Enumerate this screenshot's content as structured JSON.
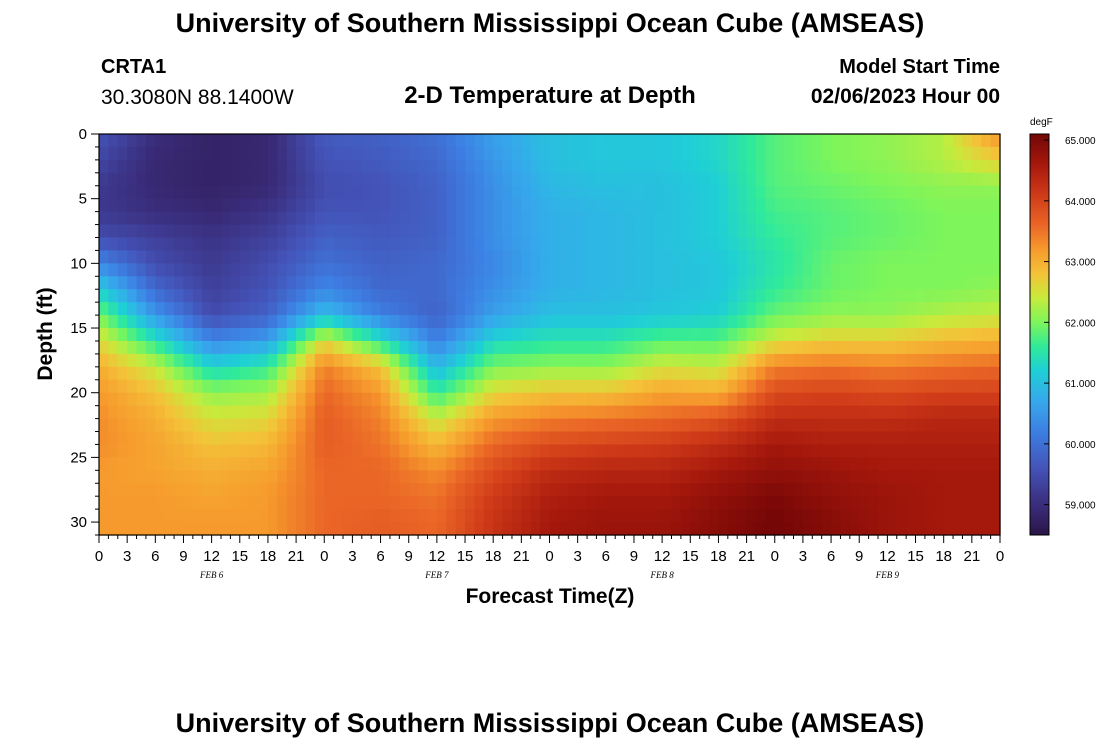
{
  "header": {
    "title": "University of Southern Mississippi Ocean Cube (AMSEAS)",
    "station_id": "CRTA1",
    "station_coords": "30.3080N  88.1400W",
    "subtitle": "2-D Temperature at Depth",
    "model_start_label": "Model Start Time",
    "model_start_time": "02/06/2023 Hour 00"
  },
  "footer": {
    "title": "University of Southern Mississippi Ocean Cube (AMSEAS)"
  },
  "chart_data": {
    "type": "heatmap",
    "title": "2-D Temperature at Depth",
    "xlabel": "Forecast Time(Z)",
    "ylabel": "Depth (ft)",
    "x_hours_range": [
      0,
      96
    ],
    "x_tick_step_hours": 3,
    "x_tick_labels": [
      "0",
      "3",
      "6",
      "9",
      "12",
      "15",
      "18",
      "21",
      "0",
      "3",
      "6",
      "9",
      "12",
      "15",
      "18",
      "21",
      "0",
      "3",
      "6",
      "9",
      "12",
      "15",
      "18",
      "21",
      "0",
      "3",
      "6",
      "9",
      "12",
      "15",
      "18",
      "21",
      "0"
    ],
    "date_labels": [
      {
        "label": "FEB 6",
        "hour": 12
      },
      {
        "label": "FEB 7",
        "hour": 36
      },
      {
        "label": "FEB 8",
        "hour": 60
      },
      {
        "label": "FEB 9",
        "hour": 84
      }
    ],
    "y_range": [
      0,
      31
    ],
    "y_ticks": [
      0,
      5,
      10,
      15,
      20,
      25,
      30
    ],
    "y_tick_labels": [
      "0",
      "5",
      "10",
      "15",
      "20",
      "25",
      "30"
    ],
    "colorbar": {
      "unit": "degF",
      "min": 58.5,
      "max": 65.1,
      "ticks": [
        59,
        60,
        61,
        62,
        63,
        64,
        65
      ],
      "tick_labels": [
        "59.000",
        "60.000",
        "61.000",
        "62.000",
        "63.000",
        "64.000",
        "65.000"
      ],
      "colormap_stops": [
        {
          "value": 58.5,
          "color": "#2b1447"
        },
        {
          "value": 59.0,
          "color": "#3a2d7c"
        },
        {
          "value": 59.6,
          "color": "#4453b8"
        },
        {
          "value": 60.2,
          "color": "#3d7fe3"
        },
        {
          "value": 60.7,
          "color": "#36a8ec"
        },
        {
          "value": 61.2,
          "color": "#1fcfd6"
        },
        {
          "value": 61.6,
          "color": "#30ea9a"
        },
        {
          "value": 62.0,
          "color": "#7df55b"
        },
        {
          "value": 62.4,
          "color": "#c7eb3c"
        },
        {
          "value": 62.8,
          "color": "#f4c238"
        },
        {
          "value": 63.2,
          "color": "#f69a2d"
        },
        {
          "value": 63.6,
          "color": "#ea6626"
        },
        {
          "value": 64.1,
          "color": "#cf3a18"
        },
        {
          "value": 64.6,
          "color": "#a5180c"
        },
        {
          "value": 65.1,
          "color": "#730606"
        }
      ]
    },
    "depths_ft": [
      0,
      2,
      4,
      6,
      8,
      10,
      12,
      14,
      16,
      18,
      20,
      22,
      24,
      26,
      28,
      30
    ],
    "times_h": [
      0,
      6,
      12,
      18,
      24,
      30,
      36,
      42,
      48,
      54,
      60,
      66,
      72,
      78,
      84,
      90,
      96
    ],
    "temperature_degF": [
      [
        59.6,
        59.0,
        58.8,
        58.9,
        59.7,
        59.8,
        60.0,
        60.6,
        61.0,
        61.1,
        61.1,
        61.3,
        61.8,
        62.0,
        62.1,
        62.3,
        63.3
      ],
      [
        59.4,
        58.9,
        58.8,
        58.9,
        59.6,
        59.7,
        59.9,
        60.5,
        61.0,
        61.1,
        61.1,
        61.3,
        61.8,
        62.0,
        62.1,
        62.3,
        62.7
      ],
      [
        59.2,
        58.9,
        58.8,
        58.9,
        59.5,
        59.6,
        59.8,
        60.4,
        60.9,
        61.0,
        61.0,
        61.2,
        61.8,
        61.9,
        62.0,
        62.1,
        62.1
      ],
      [
        59.2,
        59.0,
        58.9,
        59.1,
        59.6,
        59.6,
        59.8,
        60.4,
        60.8,
        60.9,
        61.0,
        61.2,
        61.7,
        61.8,
        61.9,
        62.0,
        62.0
      ],
      [
        59.5,
        59.3,
        59.1,
        59.3,
        59.8,
        59.7,
        59.8,
        60.4,
        60.8,
        60.9,
        61.0,
        61.2,
        61.6,
        61.8,
        61.9,
        62.0,
        62.0
      ],
      [
        60.3,
        59.5,
        59.2,
        59.5,
        60.0,
        59.8,
        59.9,
        60.3,
        60.8,
        60.9,
        61.0,
        61.1,
        61.5,
        61.9,
        62.0,
        62.0,
        62.0
      ],
      [
        61.2,
        59.9,
        59.3,
        59.6,
        60.3,
        59.9,
        59.9,
        60.4,
        60.8,
        60.9,
        61.0,
        61.1,
        61.6,
        61.9,
        62.0,
        62.0,
        62.1
      ],
      [
        62.0,
        60.5,
        59.5,
        59.8,
        61.0,
        60.2,
        59.8,
        60.6,
        61.0,
        61.0,
        61.1,
        61.2,
        61.9,
        62.1,
        62.1,
        62.3,
        62.4
      ],
      [
        62.6,
        61.5,
        60.3,
        60.6,
        62.6,
        61.5,
        60.2,
        61.3,
        61.5,
        61.5,
        61.8,
        61.8,
        62.5,
        62.7,
        62.7,
        62.9,
        63.0
      ],
      [
        63.0,
        62.4,
        61.3,
        61.6,
        63.4,
        62.8,
        60.9,
        62.0,
        62.1,
        62.1,
        62.5,
        62.4,
        63.4,
        63.5,
        63.4,
        63.5,
        63.6
      ],
      [
        63.2,
        62.8,
        62.1,
        62.2,
        63.6,
        63.2,
        61.6,
        62.6,
        62.8,
        62.8,
        63.1,
        63.0,
        63.9,
        64.0,
        63.9,
        64.0,
        64.0
      ],
      [
        63.3,
        63.0,
        62.5,
        62.6,
        63.7,
        63.4,
        62.4,
        63.2,
        63.4,
        63.5,
        63.6,
        63.8,
        64.3,
        64.3,
        64.3,
        64.4,
        64.4
      ],
      [
        63.3,
        63.1,
        62.8,
        62.9,
        63.7,
        63.5,
        62.9,
        63.6,
        63.9,
        64.0,
        64.1,
        64.3,
        64.6,
        64.5,
        64.5,
        64.5,
        64.5
      ],
      [
        63.2,
        63.1,
        63.0,
        63.1,
        63.6,
        63.6,
        63.3,
        63.9,
        64.3,
        64.4,
        64.4,
        64.6,
        64.8,
        64.7,
        64.6,
        64.6,
        64.6
      ],
      [
        63.2,
        63.2,
        63.1,
        63.2,
        63.6,
        63.6,
        63.5,
        64.1,
        64.5,
        64.6,
        64.6,
        64.8,
        65.0,
        64.8,
        64.7,
        64.6,
        64.6
      ],
      [
        63.2,
        63.2,
        63.2,
        63.2,
        63.6,
        63.7,
        63.6,
        64.2,
        64.6,
        64.7,
        64.7,
        64.9,
        65.1,
        64.9,
        64.7,
        64.6,
        64.6
      ]
    ]
  }
}
